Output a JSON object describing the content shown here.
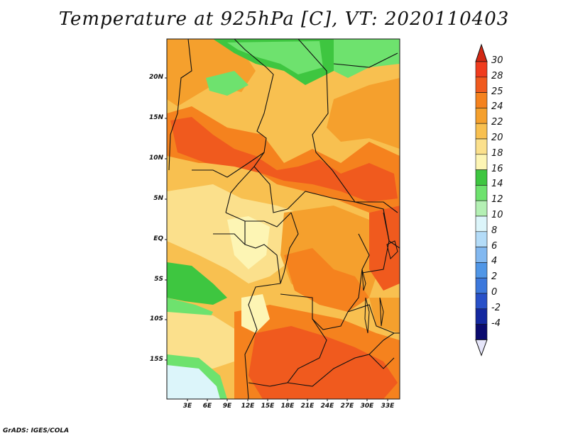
{
  "title": "Temperature at 925hPa [C], VT: 2020110403",
  "credit": "GrADS: IGES/COLA",
  "y_ticks": [
    "20N",
    "15N",
    "10N",
    "5N",
    "EQ",
    "5S",
    "10S",
    "15S"
  ],
  "x_ticks": [
    "3E",
    "6E",
    "9E",
    "12E",
    "15E",
    "18E",
    "21E",
    "24E",
    "27E",
    "30E",
    "33E"
  ],
  "colorbar": {
    "levels": [
      "30",
      "28",
      "25",
      "24",
      "22",
      "20",
      "18",
      "16",
      "14",
      "12",
      "10",
      "8",
      "6",
      "4",
      "2",
      "0",
      "-2",
      "-4"
    ],
    "colors": [
      "#f03c1e",
      "#f05a1e",
      "#f5821e",
      "#f5a02d",
      "#f8c050",
      "#fbe08c",
      "#fdf5b4",
      "#3ec640",
      "#6ee26e",
      "#b4f0b4",
      "#dcf5fa",
      "#b4dcf8",
      "#82b8f0",
      "#5096e6",
      "#3c78dc",
      "#2850c8",
      "#1428a0",
      "#0a0a6e"
    ],
    "top_color": "#d22814",
    "bottom_color": "#e6e6fa"
  },
  "map_colors": {
    "hot": "#f05a1e",
    "warm": "#f5821e",
    "orange": "#f5a02d",
    "light_orange": "#f8c050",
    "yellow": "#fbe08c",
    "pale": "#fdf5b4",
    "green": "#3ec640",
    "light_green": "#6ee26e",
    "cyan": "#dcf5fa"
  }
}
